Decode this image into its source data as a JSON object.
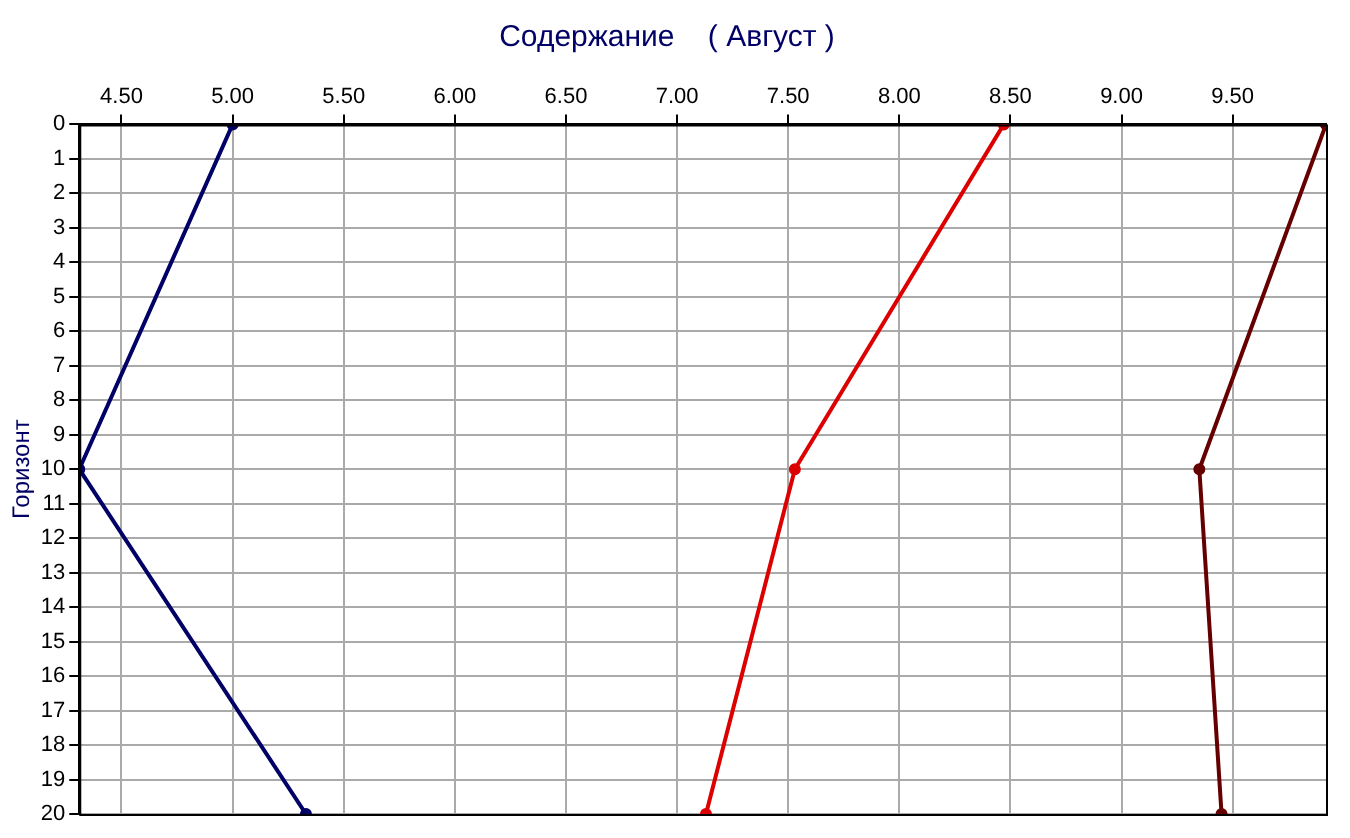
{
  "chart_data": {
    "type": "line",
    "title": "Содержание    ( Август )",
    "ylabel": "Горизонт",
    "xlim": [
      4.31,
      9.92
    ],
    "xticks": [
      {
        "value": 4.5,
        "label": "4.50"
      },
      {
        "value": 5,
        "label": "5.00"
      },
      {
        "value": 5.5,
        "label": "5.50"
      },
      {
        "value": 6,
        "label": "6.00"
      },
      {
        "value": 6.5,
        "label": "6.50"
      },
      {
        "value": 7,
        "label": "7.00"
      },
      {
        "value": 7.5,
        "label": "7.50"
      },
      {
        "value": 8,
        "label": "8.00"
      },
      {
        "value": 8.5,
        "label": "8.50"
      },
      {
        "value": 9,
        "label": "9.00"
      },
      {
        "value": 9.5,
        "label": "9.50"
      }
    ],
    "ylim": [
      20,
      0
    ],
    "yticks": [
      0,
      1,
      2,
      3,
      4,
      5,
      6,
      7,
      8,
      9,
      10,
      11,
      12,
      13,
      14,
      15,
      16,
      17,
      18,
      19,
      20
    ],
    "grid": true,
    "marker": "circle",
    "line_style": "solid",
    "series": [
      {
        "color": "#000066",
        "x": [
          5.0,
          4.31,
          5.33
        ],
        "values": [
          0,
          10,
          20
        ]
      },
      {
        "color": "#dd0000",
        "x": [
          8.47,
          7.53,
          7.13
        ],
        "values": [
          0,
          10,
          20
        ]
      },
      {
        "color": "#660000",
        "x": [
          9.92,
          9.35,
          9.45
        ],
        "values": [
          0,
          10,
          20
        ]
      }
    ]
  }
}
